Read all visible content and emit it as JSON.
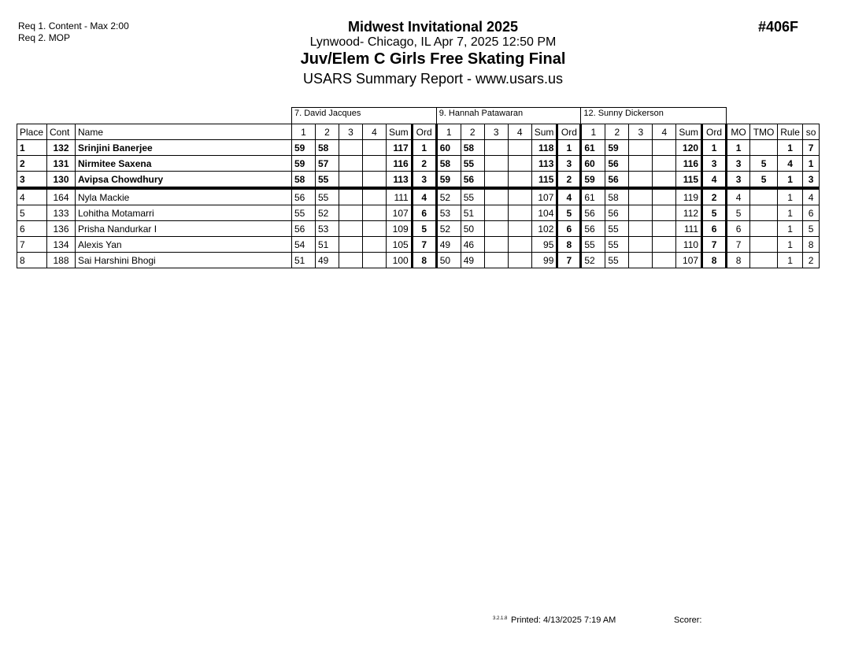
{
  "requirements": [
    "Req  1.  Content - Max 2:00",
    "Req  2.  MOP"
  ],
  "header": {
    "event_name": "Midwest Invitational 2025",
    "location_date": "Lynwood- Chicago, IL  Apr 7, 2025  12:50 PM",
    "event_title": "Juv/Elem C Girls Free Skating Final",
    "report": "USARS Summary Report - www.usars.us",
    "event_number": "#406F"
  },
  "judges": [
    "7.  David Jacques",
    "9.  Hannah Patawaran",
    "12.  Sunny Dickerson"
  ],
  "columns": {
    "place": "Place",
    "cont": "Cont",
    "name": "Name",
    "judge_cols": [
      "1",
      "2",
      "3",
      "4",
      "Sum",
      "Ord"
    ],
    "mo": "MO",
    "tmo": "TMO",
    "rule": "Rule",
    "so": "so"
  },
  "rows": [
    {
      "place": "1",
      "cont": "132",
      "name": "Srinjini Banerjee",
      "bold": true,
      "j": [
        [
          "59",
          "58",
          "",
          "",
          "117",
          "1"
        ],
        [
          "60",
          "58",
          "",
          "",
          "118",
          "1"
        ],
        [
          "61",
          "59",
          "",
          "",
          "120",
          "1"
        ]
      ],
      "mo": "1",
      "tmo": "",
      "rule": "1",
      "so": "7"
    },
    {
      "place": "2",
      "cont": "131",
      "name": "Nirmitee Saxena",
      "bold": true,
      "j": [
        [
          "59",
          "57",
          "",
          "",
          "116",
          "2"
        ],
        [
          "58",
          "55",
          "",
          "",
          "113",
          "3"
        ],
        [
          "60",
          "56",
          "",
          "",
          "116",
          "3"
        ]
      ],
      "mo": "3",
      "tmo": "5",
      "rule": "4",
      "so": "1"
    },
    {
      "place": "3",
      "cont": "130",
      "name": "Avipsa Chowdhury",
      "bold": true,
      "j": [
        [
          "58",
          "55",
          "",
          "",
          "113",
          "3"
        ],
        [
          "59",
          "56",
          "",
          "",
          "115",
          "2"
        ],
        [
          "59",
          "56",
          "",
          "",
          "115",
          "4"
        ]
      ],
      "mo": "3",
      "tmo": "5",
      "rule": "1",
      "so": "3"
    },
    {
      "place": "4",
      "cont": "164",
      "name": "Nyla Mackie",
      "bold": false,
      "j": [
        [
          "56",
          "55",
          "",
          "",
          "111",
          "4"
        ],
        [
          "52",
          "55",
          "",
          "",
          "107",
          "4"
        ],
        [
          "61",
          "58",
          "",
          "",
          "119",
          "2"
        ]
      ],
      "mo": "4",
      "tmo": "",
      "rule": "1",
      "so": "4"
    },
    {
      "place": "5",
      "cont": "133",
      "name": "Lohitha Motamarri",
      "bold": false,
      "j": [
        [
          "55",
          "52",
          "",
          "",
          "107",
          "6"
        ],
        [
          "53",
          "51",
          "",
          "",
          "104",
          "5"
        ],
        [
          "56",
          "56",
          "",
          "",
          "112",
          "5"
        ]
      ],
      "mo": "5",
      "tmo": "",
      "rule": "1",
      "so": "6"
    },
    {
      "place": "6",
      "cont": "136",
      "name": "Prisha Nandurkar I",
      "bold": false,
      "j": [
        [
          "56",
          "53",
          "",
          "",
          "109",
          "5"
        ],
        [
          "52",
          "50",
          "",
          "",
          "102",
          "6"
        ],
        [
          "56",
          "55",
          "",
          "",
          "111",
          "6"
        ]
      ],
      "mo": "6",
      "tmo": "",
      "rule": "1",
      "so": "5"
    },
    {
      "place": "7",
      "cont": "134",
      "name": "Alexis Yan",
      "bold": false,
      "j": [
        [
          "54",
          "51",
          "",
          "",
          "105",
          "7"
        ],
        [
          "49",
          "46",
          "",
          "",
          "95",
          "8"
        ],
        [
          "55",
          "55",
          "",
          "",
          "110",
          "7"
        ]
      ],
      "mo": "7",
      "tmo": "",
      "rule": "1",
      "so": "8"
    },
    {
      "place": "8",
      "cont": "188",
      "name": "Sai Harshini Bhogi",
      "bold": false,
      "j": [
        [
          "51",
          "49",
          "",
          "",
          "100",
          "8"
        ],
        [
          "50",
          "49",
          "",
          "",
          "99",
          "7"
        ],
        [
          "52",
          "55",
          "",
          "",
          "107",
          "8"
        ]
      ],
      "mo": "8",
      "tmo": "",
      "rule": "1",
      "so": "2"
    }
  ],
  "footer": {
    "version": "3.2.1.8",
    "printed": "Printed:  4/13/2025  7:19 AM",
    "scorer": "Scorer:"
  }
}
